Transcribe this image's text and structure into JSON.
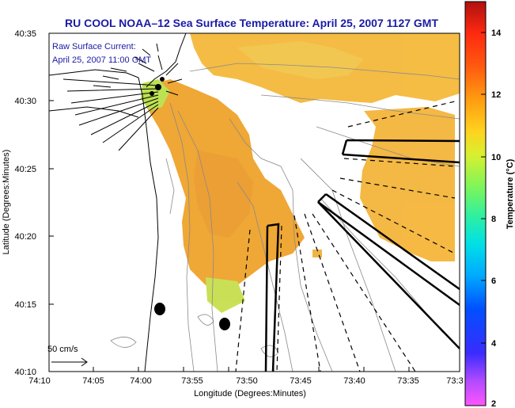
{
  "title": "RU COOL  NOAA–12  Sea Surface Temperature:  April 25, 2007 1127 GMT",
  "inset_labels": {
    "line1": "Raw Surface Current:",
    "line2": "April 25, 2007 11:00 GMT"
  },
  "scale_label": "50 cm/s",
  "axes": {
    "x_label": "Longitude (Degrees:Minutes)",
    "y_label": "Latitude (Degrees:Minutes)",
    "x_ticks": [
      "74:10",
      "74:05",
      "74:00",
      "73:55",
      "73:50",
      "73:45",
      "73:40",
      "73:35",
      "73:3"
    ],
    "y_ticks": [
      "40:35",
      "40:30",
      "40:25",
      "40:20",
      "40:15",
      "40:10"
    ]
  },
  "colorbar": {
    "label": "Temperature (°C)",
    "ticks": [
      "14",
      "12",
      "10",
      "8",
      "6",
      "4",
      "2"
    ],
    "range": [
      2,
      15
    ]
  },
  "colors": {
    "title": "#1a1aa6",
    "sst_warm": "#f0a52a",
    "sst_mid": "#f4c23a",
    "sst_cool": "#b9e04a"
  }
}
